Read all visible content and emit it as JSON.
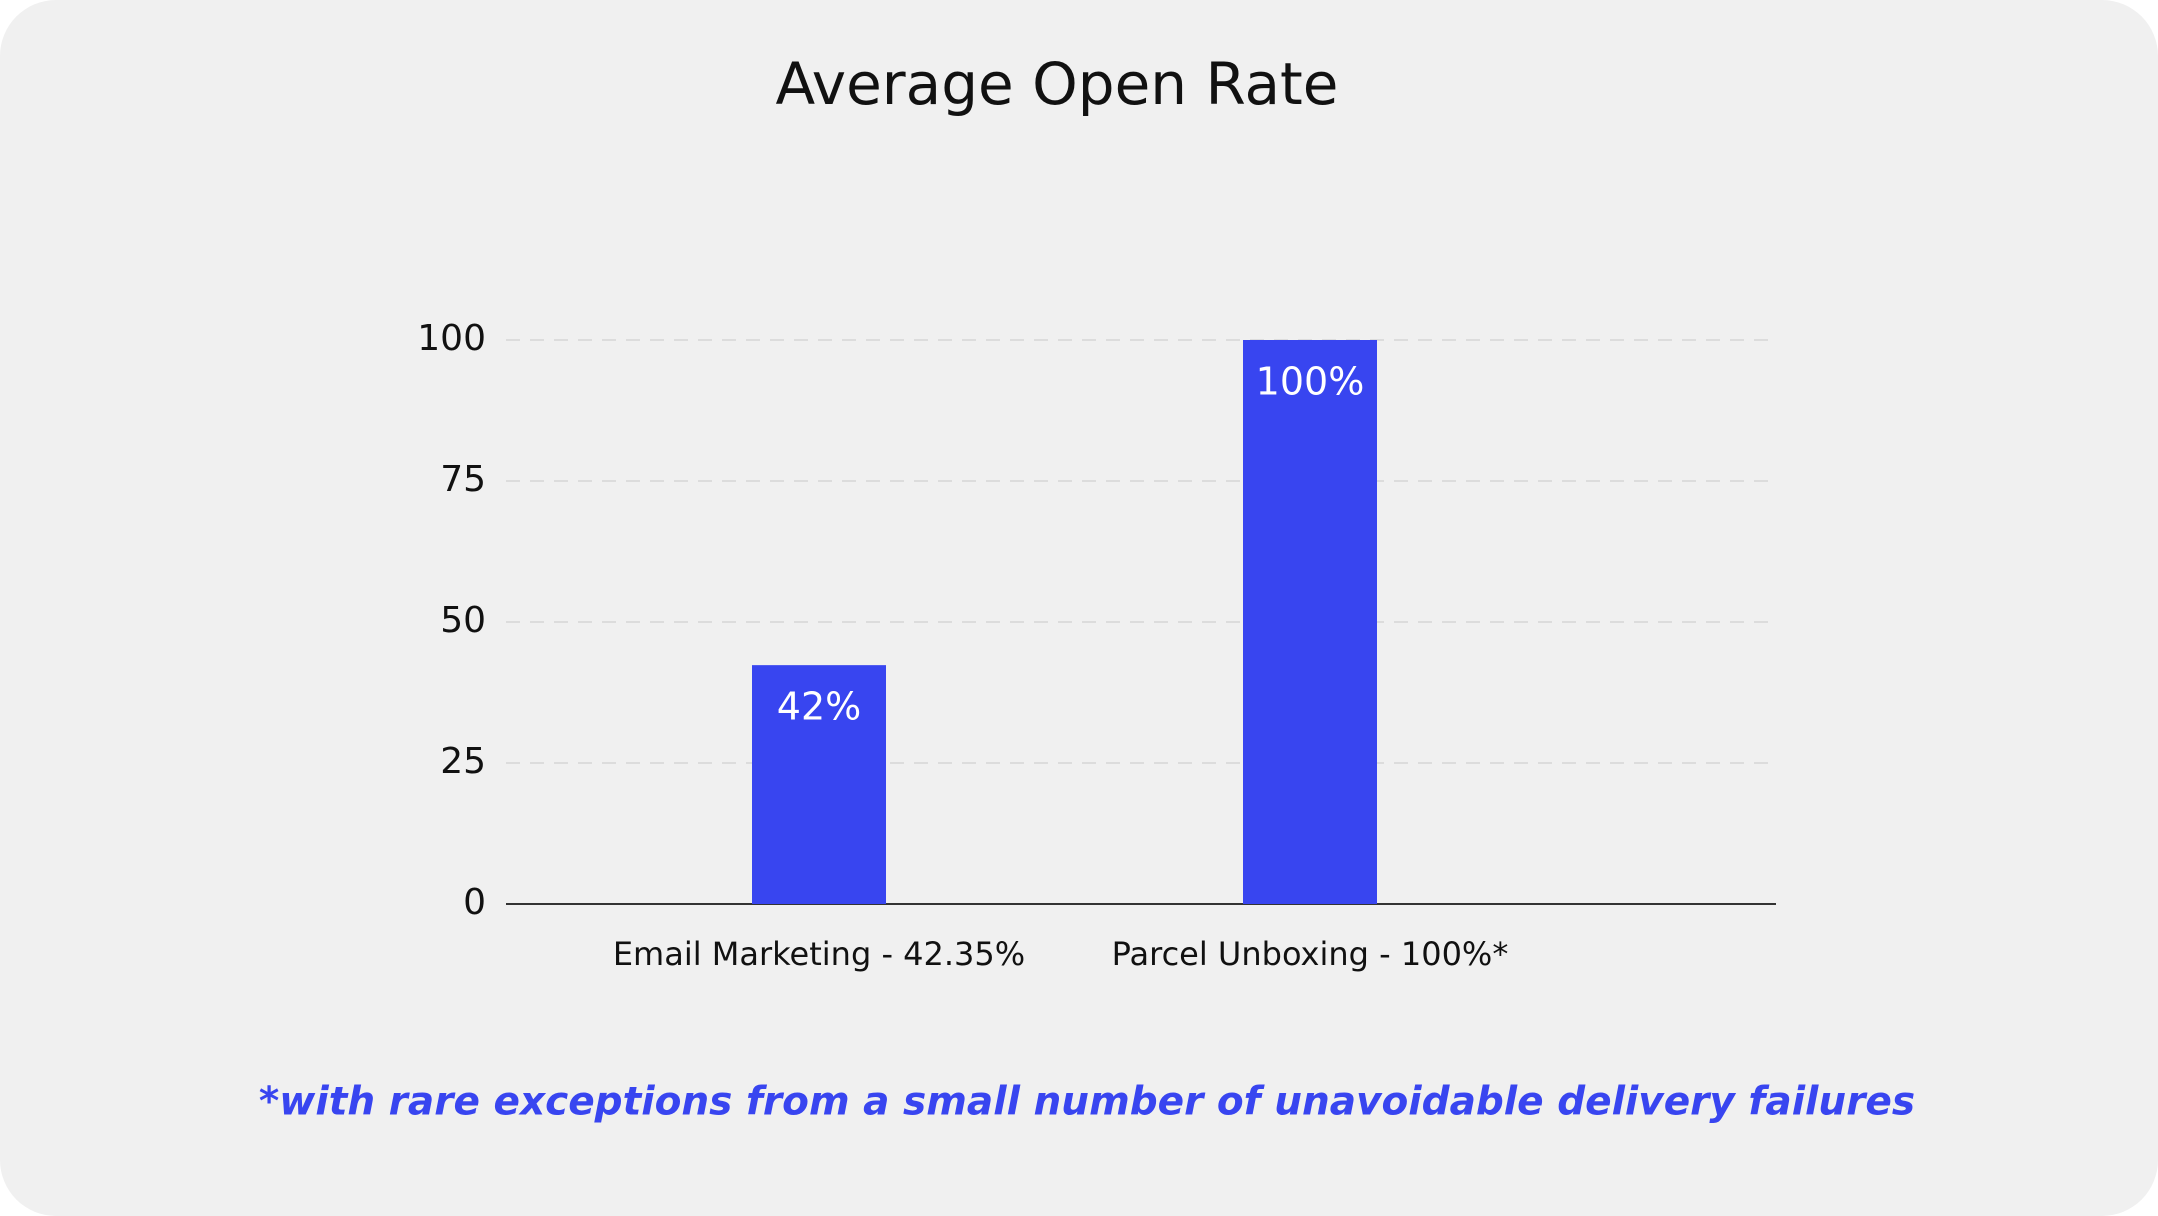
{
  "chart_data": {
    "type": "bar",
    "title": "Average Open Rate",
    "categories": [
      "Email Marketing - 42.35%",
      "Parcel Unboxing - 100%*"
    ],
    "values": [
      42.35,
      100
    ],
    "value_labels": [
      "42%",
      "100%"
    ],
    "color": "#3845f0",
    "ylim": [
      0,
      100
    ],
    "yticks": [
      0,
      25,
      50,
      75,
      100
    ],
    "grid": true,
    "note": "*with rare exceptions from a small number of unavoidable delivery failures"
  }
}
